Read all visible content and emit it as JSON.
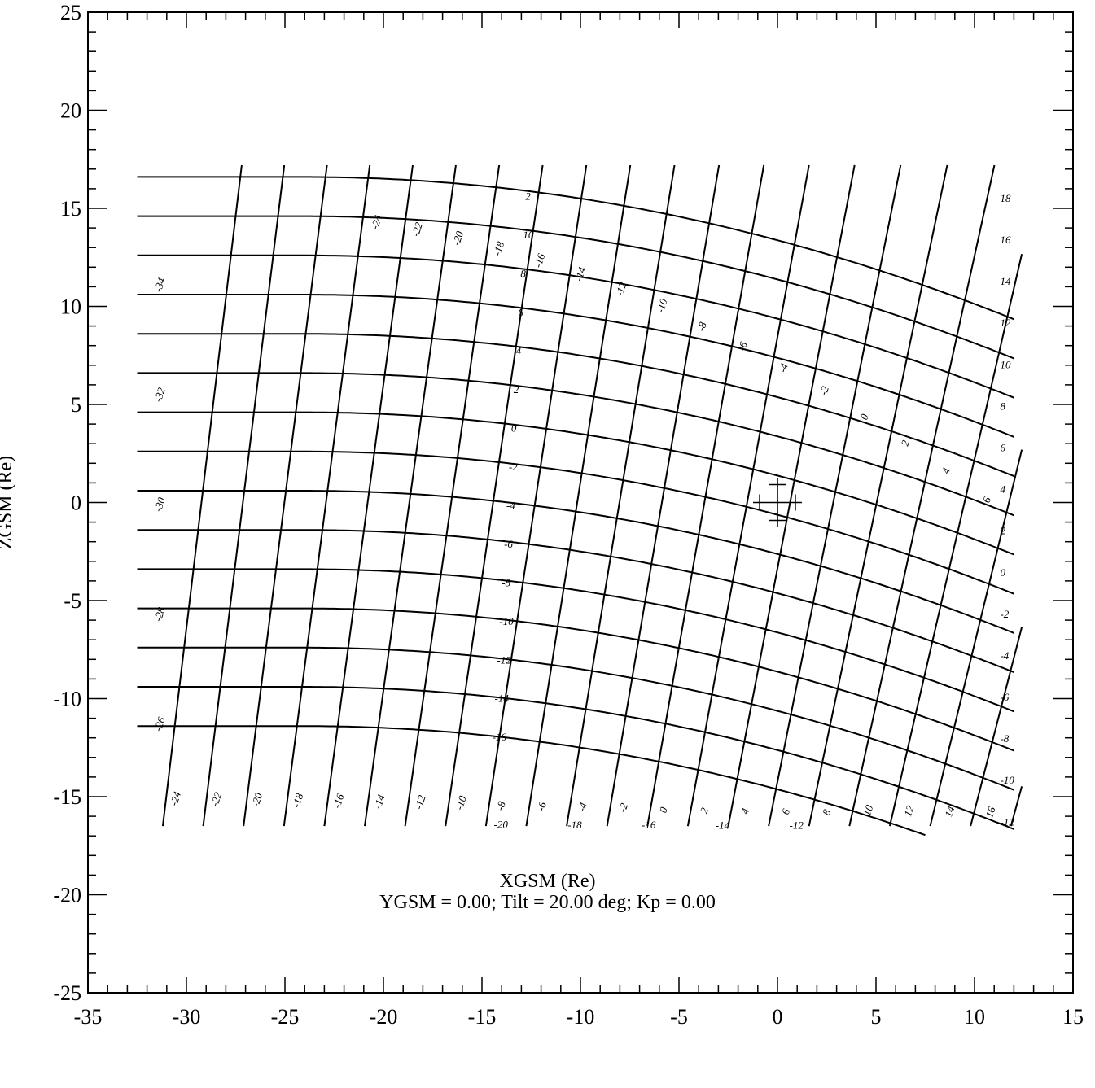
{
  "chart_data": {
    "type": "line",
    "xlabel": "XGSM (Re)",
    "ylabel": "ZGSM (Re)",
    "caption": "YGSM =  0.00;   Tilt = 20.00 deg;  Kp = 0.00",
    "xlim": [
      -35,
      15
    ],
    "ylim": [
      -25,
      25
    ],
    "x_ticks": [
      "-35",
      "-30",
      "-25",
      "-20",
      "-15",
      "-10",
      "-5",
      "0",
      "5",
      "10",
      "15"
    ],
    "y_ticks": [
      "25",
      "20",
      "15",
      "10",
      "5",
      "0",
      "-5",
      "-10",
      "-15",
      "-20",
      "-25"
    ],
    "grid_family_a_labels": [
      "18",
      "16",
      "14",
      "12",
      "10",
      "8",
      "6",
      "4",
      "2",
      "0",
      "-2",
      "-4",
      "-6",
      "-8",
      "-10",
      "-12"
    ],
    "grid_family_b_labels": [
      "-24",
      "-22",
      "-20",
      "-18",
      "-16",
      "-14",
      "-12",
      "-10",
      "-8",
      "-6",
      "-4",
      "-2",
      "0",
      "2",
      "4",
      "6"
    ],
    "mid_labels": [
      "2",
      "10",
      "8",
      "6",
      "4",
      "2",
      "0",
      "-2",
      "-4",
      "-6",
      "-8",
      "-10",
      "-12",
      "-14",
      "-16"
    ],
    "left_edge_labels": [
      "-34",
      "-32",
      "-30",
      "-28",
      "-26"
    ],
    "bottom_labels": [
      "-24",
      "-22",
      "-20",
      "-18",
      "-16",
      "-14",
      "-12",
      "-10",
      "-8",
      "-6",
      "-4",
      "-2",
      "0",
      "2",
      "4",
      "6",
      "8",
      "10",
      "12",
      "14",
      "16"
    ],
    "bottom_row_labels": [
      "-20",
      "-18",
      "-16",
      "-14",
      "-12"
    ],
    "earth_marker": {
      "x": 0,
      "z": 0
    }
  }
}
